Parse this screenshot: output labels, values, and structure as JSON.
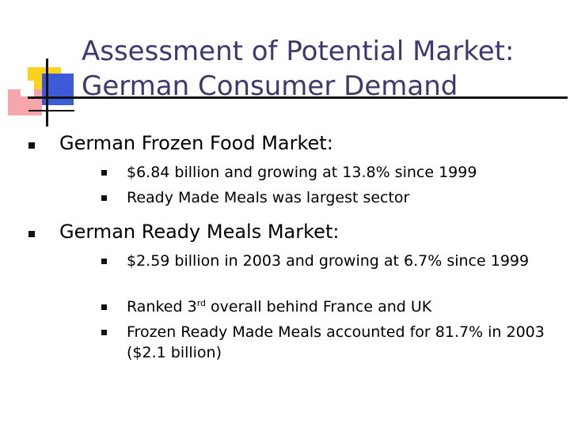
{
  "slide": {
    "title_line1": "Assessment of Potential Market:",
    "title_line2": "German Consumer Demand",
    "sections": [
      {
        "heading": "German Frozen Food Market:",
        "items": [
          "$6.84 billion and growing at 13.8% since 1999",
          "Ready Made Meals was largest sector"
        ]
      },
      {
        "heading": "German Ready Meals Market:",
        "item1": "$2.59 billion in 2003 and growing at 6.7% since 1999",
        "item2_prefix": "Ranked 3",
        "item2_sup": "rd",
        "item2_suffix": " overall behind France and UK",
        "item3": "Frozen Ready Made Meals accounted for 81.7% in 2003 ($2.1 billion)"
      }
    ]
  },
  "colors": {
    "title": "#3a3a6e",
    "accent_yellow": "#ffd21a",
    "accent_blue": "#3d5bd8",
    "accent_pink": "#f7a7ab"
  }
}
